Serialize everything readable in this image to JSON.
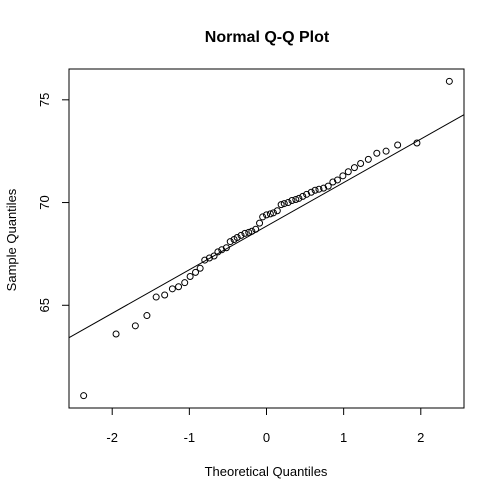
{
  "chart_data": {
    "type": "scatter",
    "title": "Normal Q-Q Plot",
    "xlabel": "Theoretical Quantiles",
    "ylabel": "Sample Quantiles",
    "xlim": [
      -2.56,
      2.56
    ],
    "ylim": [
      60,
      76.5
    ],
    "x_ticks": [
      "-2",
      "-1",
      "0",
      "1",
      "2"
    ],
    "y_ticks": [
      "65",
      "70",
      "75"
    ],
    "grid": false,
    "legend": "none",
    "colors": {
      "points": "#000000",
      "line": "#000000",
      "frame": "#000000"
    },
    "series": [
      {
        "x": [
          -2.37,
          -1.95,
          -1.7,
          -1.55,
          -1.43,
          -1.32,
          -1.22,
          -1.14,
          -1.06,
          -0.99,
          -0.92,
          -0.86,
          -0.8,
          -0.74,
          -0.68,
          -0.63,
          -0.58,
          -0.52,
          -0.47,
          -0.42,
          -0.38,
          -0.33,
          -0.28,
          -0.23,
          -0.19,
          -0.14,
          -0.09,
          -0.05,
          0.0,
          0.05,
          0.09,
          0.14,
          0.19,
          0.23,
          0.28,
          0.33,
          0.38,
          0.42,
          0.47,
          0.52,
          0.58,
          0.63,
          0.68,
          0.74,
          0.8,
          0.86,
          0.92,
          0.99,
          1.06,
          1.14,
          1.22,
          1.32,
          1.43,
          1.55,
          1.7,
          1.95,
          2.37
        ],
        "y": [
          60.6,
          63.6,
          64.0,
          64.5,
          65.4,
          65.5,
          65.8,
          65.9,
          66.1,
          66.4,
          66.6,
          66.8,
          67.2,
          67.3,
          67.4,
          67.6,
          67.7,
          67.8,
          68.1,
          68.2,
          68.3,
          68.4,
          68.5,
          68.55,
          68.6,
          68.7,
          69.0,
          69.3,
          69.4,
          69.45,
          69.5,
          69.6,
          69.9,
          69.95,
          70.0,
          70.1,
          70.15,
          70.2,
          70.3,
          70.4,
          70.5,
          70.6,
          70.65,
          70.7,
          70.8,
          71.0,
          71.1,
          71.3,
          71.5,
          71.7,
          71.9,
          72.1,
          72.4,
          72.5,
          72.8,
          72.9,
          75.9
        ]
      }
    ],
    "reference_line": {
      "intercept": 68.85,
      "slope": 2.12
    }
  }
}
